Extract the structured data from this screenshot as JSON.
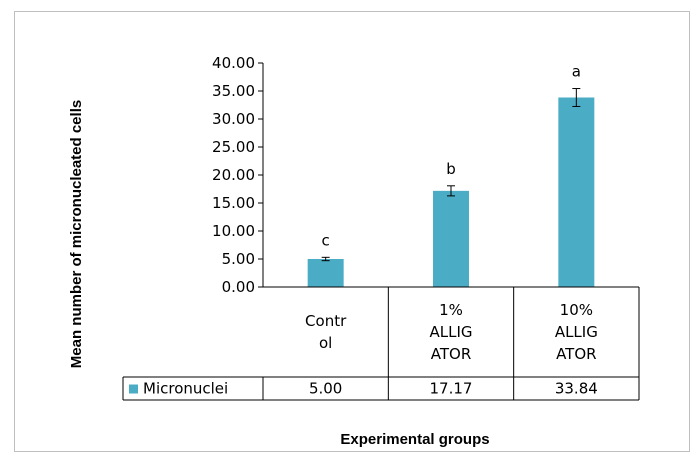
{
  "chart_data": {
    "type": "bar",
    "ylabel": "Mean number of micronucleated cells",
    "xlabel": "Experimental groups",
    "ylim": [
      0,
      40
    ],
    "y_ticks": [
      "0.00",
      "5.00",
      "10.00",
      "15.00",
      "20.00",
      "25.00",
      "30.00",
      "35.00",
      "40.00"
    ],
    "categories": [
      [
        "Contr",
        "ol"
      ],
      [
        "1%",
        "ALLIG",
        "ATOR"
      ],
      [
        "10%",
        "ALLIG",
        "ATOR"
      ]
    ],
    "series": [
      {
        "name": "Micronuclei",
        "color": "#4bacc6",
        "values": [
          5.0,
          17.17,
          33.84
        ],
        "value_labels": [
          "5.00",
          "17.17",
          "33.84"
        ],
        "errors": [
          0.3,
          0.9,
          1.6
        ],
        "significance": [
          "c",
          "b",
          "a"
        ]
      }
    ],
    "grid": false,
    "legend": "data-table-left",
    "axis_color": "#000000"
  }
}
